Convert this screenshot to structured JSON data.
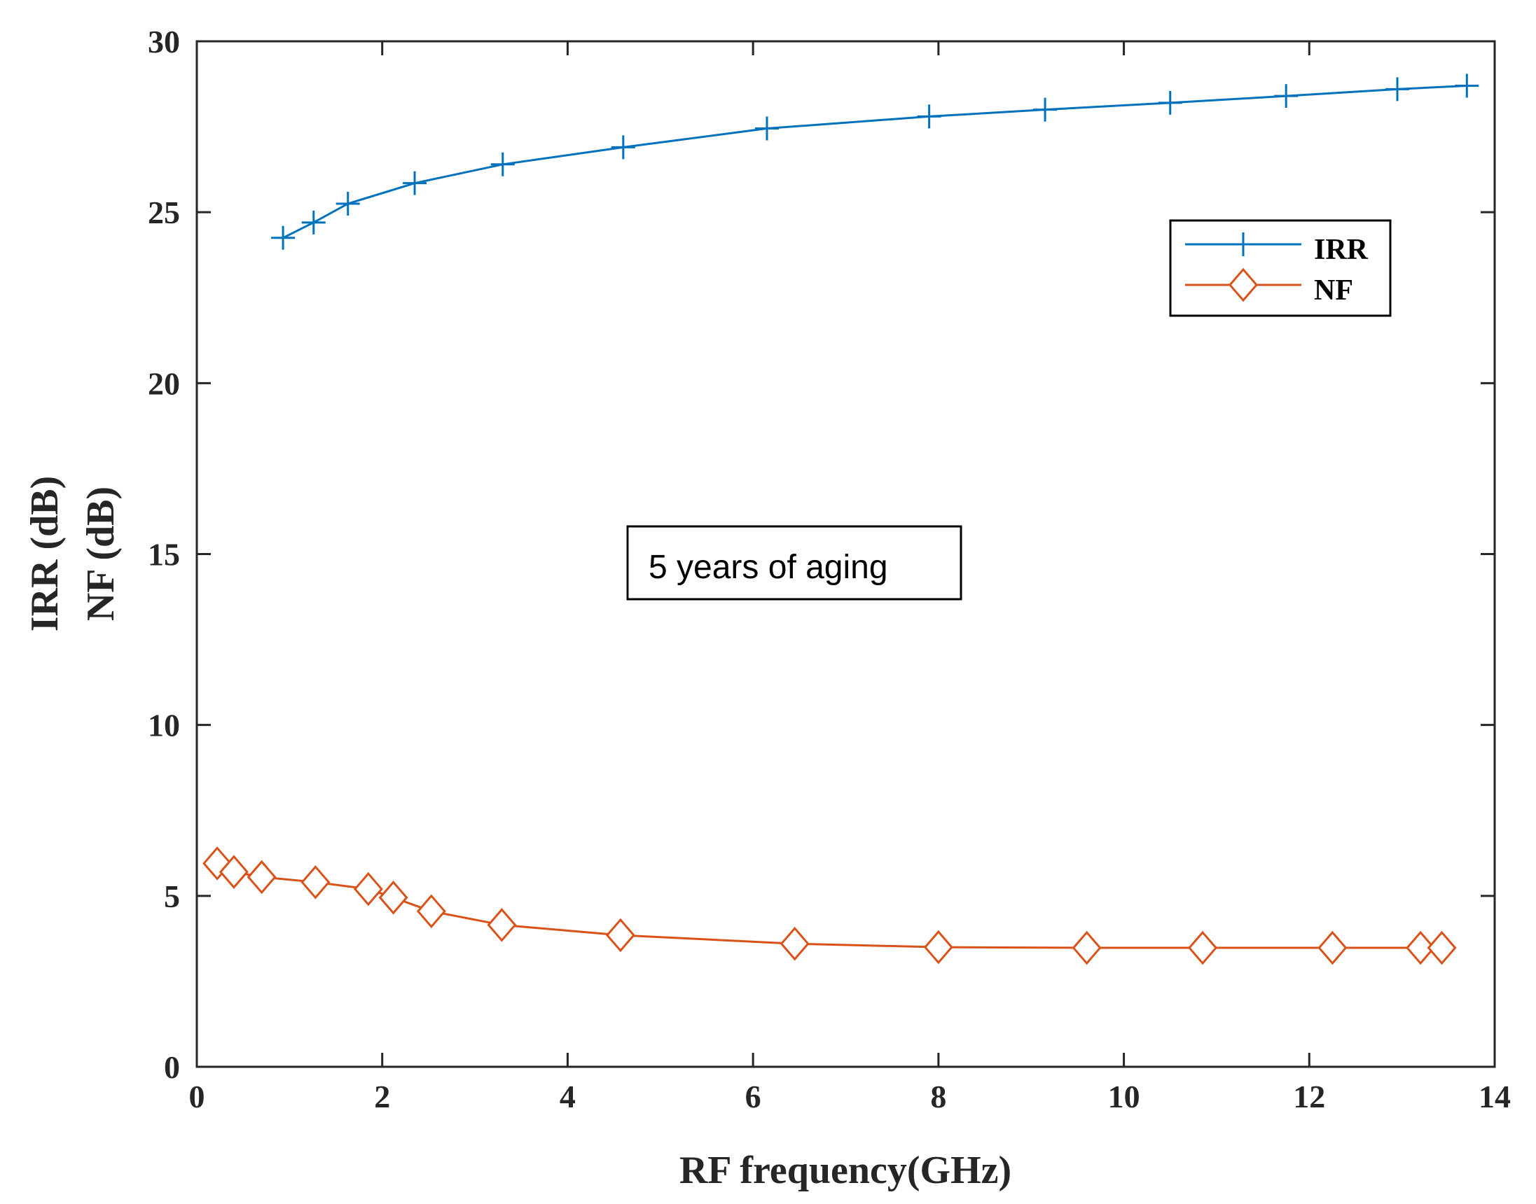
{
  "chart_data": {
    "type": "line",
    "title": "",
    "xlabel": "RF frequency(GHz)",
    "ylabel_lines": [
      "IRR (dB)",
      "NF (dB)"
    ],
    "xlim": [
      0,
      14
    ],
    "ylim": [
      0,
      30
    ],
    "x_ticks": [
      "0",
      "2",
      "4",
      "6",
      "8",
      "10",
      "12",
      "14"
    ],
    "y_ticks": [
      "0",
      "5",
      "10",
      "15",
      "20",
      "25",
      "30"
    ],
    "grid": false,
    "legend_position": "top-right",
    "annotation": "5 years of aging",
    "series": [
      {
        "name": "IRR",
        "color": "#0072BD",
        "marker": "plus",
        "x": [
          0.93,
          1.26,
          1.63,
          2.35,
          3.3,
          4.6,
          6.15,
          7.9,
          9.15,
          10.5,
          11.75,
          12.95,
          13.7
        ],
        "y": [
          24.25,
          24.7,
          25.25,
          25.85,
          26.4,
          26.9,
          27.45,
          27.8,
          28.0,
          28.2,
          28.4,
          28.6,
          28.7
        ]
      },
      {
        "name": "NF",
        "color": "#D95319",
        "marker": "diamond",
        "x": [
          0.22,
          0.4,
          0.7,
          1.28,
          1.85,
          2.12,
          2.53,
          3.29,
          4.57,
          6.45,
          8.0,
          9.6,
          10.85,
          12.25,
          13.2,
          13.43
        ],
        "y": [
          5.95,
          5.7,
          5.55,
          5.4,
          5.2,
          4.95,
          4.55,
          4.15,
          3.85,
          3.6,
          3.5,
          3.48,
          3.48,
          3.48,
          3.48,
          3.48
        ]
      }
    ]
  }
}
